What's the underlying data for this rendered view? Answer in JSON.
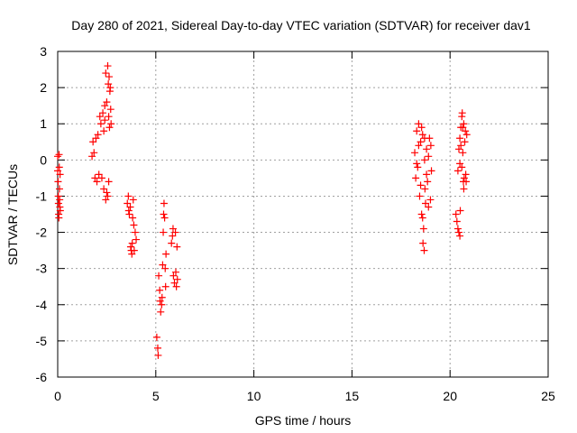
{
  "chart_data": {
    "type": "scatter",
    "title": "Day 280 of 2021, Sidereal Day-to-day VTEC variation (SDTVAR) for receiver dav1",
    "xlabel": "GPS time / hours",
    "ylabel": "SDTVAR / TECUs",
    "xlim": [
      0,
      25
    ],
    "ylim": [
      -6,
      3
    ],
    "xticks": [
      0,
      5,
      10,
      15,
      20,
      25
    ],
    "yticks": [
      -6,
      -5,
      -4,
      -3,
      -2,
      -1,
      0,
      1,
      2,
      3
    ],
    "grid": true,
    "marker": "+",
    "color": "#ff0000",
    "series": [
      {
        "name": "dav1",
        "points": [
          [
            0.0,
            0.1
          ],
          [
            0.0,
            -0.3
          ],
          [
            0.02,
            -0.6
          ],
          [
            0.03,
            -1.0
          ],
          [
            0.04,
            -1.2
          ],
          [
            0.05,
            -1.5
          ],
          [
            0.06,
            -1.6
          ],
          [
            0.07,
            0.15
          ],
          [
            0.08,
            -0.2
          ],
          [
            0.09,
            -0.8
          ],
          [
            0.1,
            -1.1
          ],
          [
            0.11,
            -1.3
          ],
          [
            0.12,
            -0.4
          ],
          [
            0.13,
            -1.4
          ],
          [
            1.75,
            0.1
          ],
          [
            1.8,
            0.5
          ],
          [
            1.85,
            0.2
          ],
          [
            1.9,
            -0.5
          ],
          [
            1.95,
            0.6
          ],
          [
            2.0,
            -0.6
          ],
          [
            2.05,
            0.7
          ],
          [
            2.1,
            -0.4
          ],
          [
            2.15,
            1.2
          ],
          [
            2.2,
            1.0
          ],
          [
            2.25,
            -0.5
          ],
          [
            2.3,
            1.3
          ],
          [
            2.35,
            -0.8
          ],
          [
            2.4,
            1.5
          ],
          [
            2.45,
            -1.1
          ],
          [
            2.5,
            1.6
          ],
          [
            2.55,
            2.6
          ],
          [
            2.6,
            1.2
          ],
          [
            2.62,
            2.3
          ],
          [
            2.64,
            0.9
          ],
          [
            2.66,
            1.9
          ],
          [
            2.68,
            2.0
          ],
          [
            2.7,
            1.4
          ],
          [
            2.72,
            1.0
          ],
          [
            2.5,
            -0.9
          ],
          [
            2.55,
            -1.0
          ],
          [
            2.6,
            -0.6
          ],
          [
            2.45,
            2.4
          ],
          [
            2.4,
            1.1
          ],
          [
            2.35,
            0.8
          ],
          [
            2.58,
            2.1
          ],
          [
            3.55,
            -1.2
          ],
          [
            3.6,
            -1.0
          ],
          [
            3.62,
            -1.4
          ],
          [
            3.65,
            -1.5
          ],
          [
            3.7,
            -1.3
          ],
          [
            3.72,
            -2.4
          ],
          [
            3.75,
            -2.5
          ],
          [
            3.78,
            -2.6
          ],
          [
            3.8,
            -2.3
          ],
          [
            3.82,
            -1.6
          ],
          [
            3.85,
            -1.1
          ],
          [
            3.88,
            -1.8
          ],
          [
            3.9,
            -2.5
          ],
          [
            3.95,
            -2.0
          ],
          [
            4.0,
            -2.2
          ],
          [
            5.05,
            -4.9
          ],
          [
            5.1,
            -5.2
          ],
          [
            5.12,
            -5.4
          ],
          [
            5.15,
            -3.2
          ],
          [
            5.2,
            -3.6
          ],
          [
            5.22,
            -3.9
          ],
          [
            5.25,
            -4.2
          ],
          [
            5.3,
            -4.0
          ],
          [
            5.32,
            -3.8
          ],
          [
            5.35,
            -2.9
          ],
          [
            5.38,
            -2.0
          ],
          [
            5.4,
            -1.5
          ],
          [
            5.42,
            -1.2
          ],
          [
            5.45,
            -1.6
          ],
          [
            5.48,
            -3.0
          ],
          [
            5.5,
            -3.5
          ],
          [
            5.52,
            -2.6
          ],
          [
            5.8,
            -2.3
          ],
          [
            5.85,
            -2.1
          ],
          [
            5.88,
            -1.9
          ],
          [
            5.9,
            -3.2
          ],
          [
            5.95,
            -3.4
          ],
          [
            6.0,
            -2.0
          ],
          [
            6.02,
            -3.1
          ],
          [
            6.05,
            -3.5
          ],
          [
            6.08,
            -2.4
          ],
          [
            6.1,
            -3.3
          ],
          [
            18.2,
            0.2
          ],
          [
            18.25,
            -0.5
          ],
          [
            18.3,
            0.8
          ],
          [
            18.35,
            -0.2
          ],
          [
            18.4,
            1.0
          ],
          [
            18.45,
            -1.0
          ],
          [
            18.5,
            0.5
          ],
          [
            18.55,
            -1.5
          ],
          [
            18.6,
            0.7
          ],
          [
            18.62,
            -2.3
          ],
          [
            18.65,
            -1.9
          ],
          [
            18.68,
            -2.5
          ],
          [
            18.7,
            0.0
          ],
          [
            18.72,
            -0.8
          ],
          [
            18.75,
            -1.2
          ],
          [
            18.8,
            0.3
          ],
          [
            18.85,
            -0.6
          ],
          [
            18.9,
            -1.3
          ],
          [
            18.95,
            0.6
          ],
          [
            19.0,
            -1.1
          ],
          [
            19.02,
            0.4
          ],
          [
            19.05,
            -0.3
          ],
          [
            18.3,
            -0.1
          ],
          [
            18.4,
            0.4
          ],
          [
            18.5,
            -0.7
          ],
          [
            18.55,
            0.9
          ],
          [
            18.6,
            -1.6
          ],
          [
            18.7,
            0.6
          ],
          [
            18.8,
            -0.4
          ],
          [
            18.9,
            0.1
          ],
          [
            20.3,
            -1.5
          ],
          [
            20.35,
            -1.7
          ],
          [
            20.4,
            -1.9
          ],
          [
            20.45,
            -2.0
          ],
          [
            20.5,
            -2.1
          ],
          [
            20.52,
            -1.4
          ],
          [
            20.4,
            -0.3
          ],
          [
            20.45,
            0.3
          ],
          [
            20.5,
            0.6
          ],
          [
            20.55,
            0.9
          ],
          [
            20.6,
            1.2
          ],
          [
            20.62,
            1.3
          ],
          [
            20.65,
            0.2
          ],
          [
            20.68,
            -0.6
          ],
          [
            20.7,
            -0.8
          ],
          [
            20.72,
            -0.5
          ],
          [
            20.75,
            0.5
          ],
          [
            20.78,
            0.8
          ],
          [
            20.8,
            -0.4
          ],
          [
            20.82,
            -0.6
          ],
          [
            20.85,
            0.7
          ],
          [
            20.5,
            -0.1
          ],
          [
            20.55,
            0.4
          ],
          [
            20.6,
            -0.2
          ],
          [
            20.65,
            0.9
          ],
          [
            20.7,
            1.0
          ]
        ]
      }
    ]
  }
}
